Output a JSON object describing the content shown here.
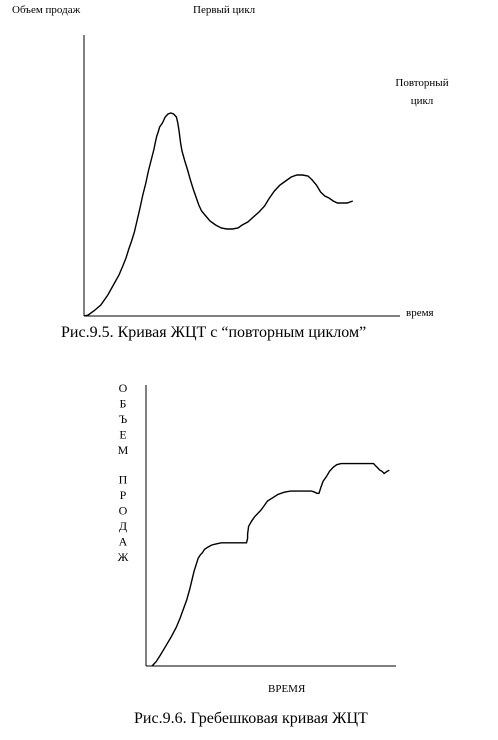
{
  "chart_data": [
    {
      "type": "line",
      "ylabel": "Объем продаж",
      "xlabel": "время",
      "annotations": [
        "Первый цикл",
        "Повторный цикл"
      ],
      "caption": "Рис.9.5. Кривая ЖЦТ с “повторным циклом”",
      "grid": false,
      "legend": "none",
      "series": [
        {
          "points": [
            [
              0,
              0
            ],
            [
              3,
              1
            ],
            [
              7,
              5
            ],
            [
              12,
              11
            ],
            [
              17,
              21
            ],
            [
              21,
              31
            ],
            [
              25,
              41
            ],
            [
              28,
              51
            ],
            [
              30,
              58
            ],
            [
              32,
              67
            ],
            [
              34,
              75
            ],
            [
              36,
              84
            ],
            [
              38,
              96
            ],
            [
              40,
              108
            ],
            [
              42,
              121
            ],
            [
              44,
              132
            ],
            [
              46,
              145
            ],
            [
              48,
              156
            ],
            [
              50,
              167
            ],
            [
              51,
              174
            ],
            [
              52,
              180
            ],
            [
              53,
              184
            ],
            [
              54,
              189
            ],
            [
              56,
              193
            ],
            [
              58,
              199
            ],
            [
              60,
              202
            ],
            [
              62,
              203
            ],
            [
              64,
              202
            ],
            [
              66,
              199
            ],
            [
              67,
              193
            ],
            [
              68,
              184
            ],
            [
              69,
              173
            ],
            [
              70,
              165
            ],
            [
              72,
              155
            ],
            [
              74,
              146
            ],
            [
              76,
              136
            ],
            [
              78,
              127
            ],
            [
              80,
              119
            ],
            [
              82,
              111
            ],
            [
              84,
              105
            ],
            [
              87,
              100
            ],
            [
              90,
              95
            ],
            [
              94,
              91
            ],
            [
              98,
              88
            ],
            [
              102,
              87
            ],
            [
              106,
              87
            ],
            [
              110,
              88
            ],
            [
              113,
              91
            ],
            [
              117,
              94
            ],
            [
              121,
              99
            ],
            [
              125,
              104
            ],
            [
              129,
              110
            ],
            [
              132,
              117
            ],
            [
              136,
              125
            ],
            [
              140,
              131
            ],
            [
              144,
              135
            ],
            [
              148,
              139
            ],
            [
              152,
              141
            ],
            [
              156,
              141
            ],
            [
              160,
              140
            ],
            [
              163,
              136
            ],
            [
              166,
              131
            ],
            [
              169,
              124
            ],
            [
              172,
              120
            ],
            [
              175,
              118
            ],
            [
              178,
              115
            ],
            [
              181,
              113
            ],
            [
              185,
              113
            ],
            [
              188,
              113
            ],
            [
              192,
              115
            ]
          ]
        }
      ]
    },
    {
      "type": "line",
      "ylabel": "ОБЪЕМ ПРОДАЖ",
      "ylabel_letters": [
        "О",
        "Б",
        "Ъ",
        "Е",
        "М",
        "",
        "П",
        "Р",
        "О",
        "Д",
        "А",
        "Ж"
      ],
      "xlabel": "ВРЕМЯ",
      "caption": "Рис.9.6. Гребешковая кривая ЖЦТ",
      "grid": false,
      "legend": "none",
      "series": [
        {
          "points": [
            [
              0,
              0
            ],
            [
              4,
              4
            ],
            [
              8,
              10
            ],
            [
              13,
              18
            ],
            [
              18,
              26
            ],
            [
              23,
              35
            ],
            [
              27,
              44
            ],
            [
              30,
              52
            ],
            [
              33,
              60
            ],
            [
              36,
              70
            ],
            [
              38,
              78
            ],
            [
              40,
              86
            ],
            [
              42,
              92
            ],
            [
              44,
              98
            ],
            [
              46,
              101
            ],
            [
              48,
              103
            ],
            [
              50,
              106
            ],
            [
              53,
              108
            ],
            [
              57,
              110
            ],
            [
              61,
              111
            ],
            [
              66,
              112
            ],
            [
              72,
              112
            ],
            [
              76,
              112
            ],
            [
              80,
              112
            ],
            [
              84,
              112
            ],
            [
              86,
              112
            ],
            [
              88,
              112
            ],
            [
              90,
              112
            ],
            [
              91,
              116
            ],
            [
              91,
              120
            ],
            [
              92,
              127
            ],
            [
              95,
              132
            ],
            [
              98,
              136
            ],
            [
              101,
              139
            ],
            [
              104,
              142
            ],
            [
              107,
              146
            ],
            [
              110,
              150
            ],
            [
              115,
              153
            ],
            [
              120,
              156
            ],
            [
              126,
              158
            ],
            [
              132,
              159
            ],
            [
              138,
              159
            ],
            [
              146,
              159
            ],
            [
              152,
              159
            ],
            [
              155,
              158
            ],
            [
              157,
              157
            ],
            [
              159,
              157
            ],
            [
              161,
              163
            ],
            [
              163,
              168
            ],
            [
              166,
              172
            ],
            [
              169,
              177
            ],
            [
              173,
              181
            ],
            [
              176,
              183
            ],
            [
              180,
              184
            ],
            [
              190,
              184
            ],
            [
              200,
              184
            ],
            [
              208,
              184
            ],
            [
              211,
              184
            ],
            [
              213,
              182
            ],
            [
              215,
              180
            ],
            [
              217,
              178
            ],
            [
              219,
              177
            ],
            [
              221,
              175
            ],
            [
              224,
              177
            ],
            [
              226,
              178
            ]
          ]
        }
      ]
    }
  ]
}
